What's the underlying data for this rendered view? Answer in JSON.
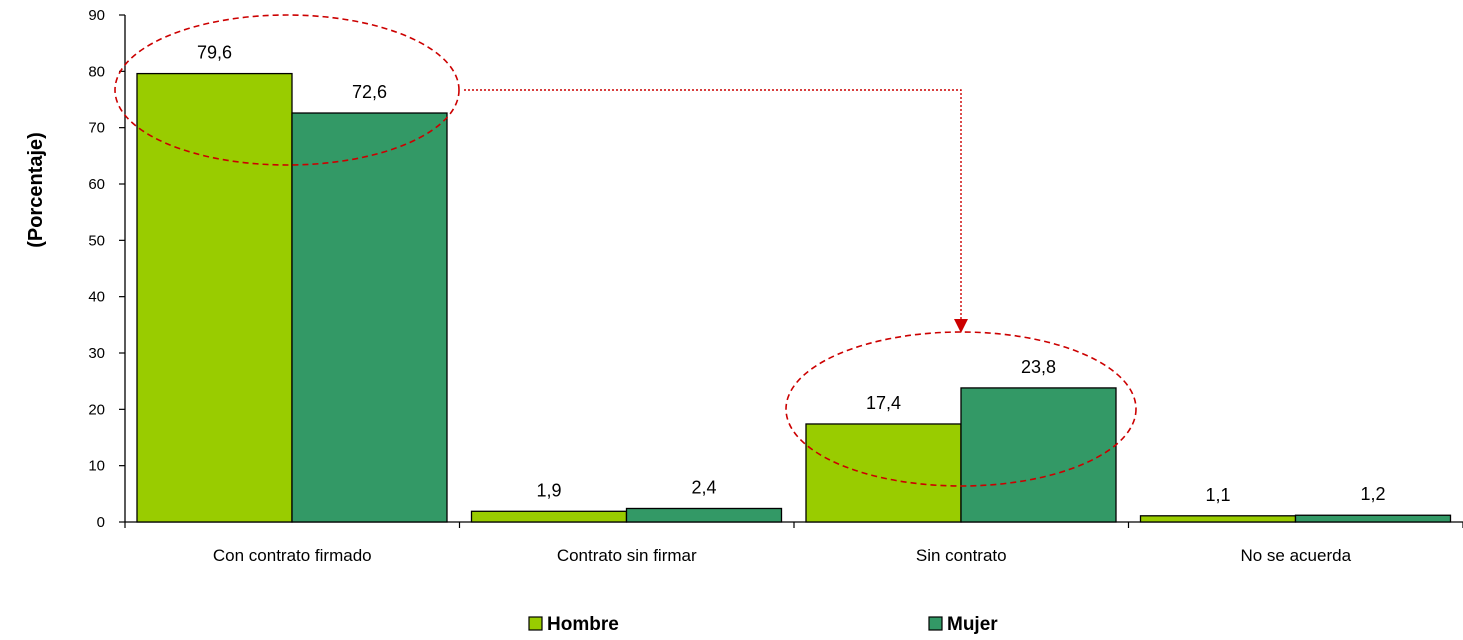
{
  "chart_data": {
    "type": "bar",
    "title": "",
    "xlabel": "",
    "ylabel": "(Porcentaje)",
    "ylim": [
      0,
      90
    ],
    "yticks": [
      "0",
      "10",
      "20",
      "30",
      "40",
      "50",
      "60",
      "70",
      "80",
      "90"
    ],
    "categories": [
      "Con contrato firmado",
      "Contrato sin firmar",
      "Sin contrato",
      "No se acuerda"
    ],
    "series": [
      {
        "name": "Hombre",
        "color": "#99cc00",
        "values": [
          79.6,
          1.9,
          17.4,
          1.1
        ],
        "labels": [
          "79,6",
          "1,9",
          "17,4",
          "1,1"
        ]
      },
      {
        "name": "Mujer",
        "color": "#339966",
        "values": [
          72.6,
          2.4,
          23.8,
          1.2
        ],
        "labels": [
          "72,6",
          "2,4",
          "23,8",
          "1,2"
        ]
      }
    ],
    "legend_position": "bottom",
    "grid": false,
    "annotations": {
      "highlight_color": "#cc0000",
      "highlighted_categories": [
        "Con contrato firmado",
        "Sin contrato"
      ],
      "arrow": {
        "from": "Con contrato firmado",
        "to": "Sin contrato"
      }
    }
  }
}
